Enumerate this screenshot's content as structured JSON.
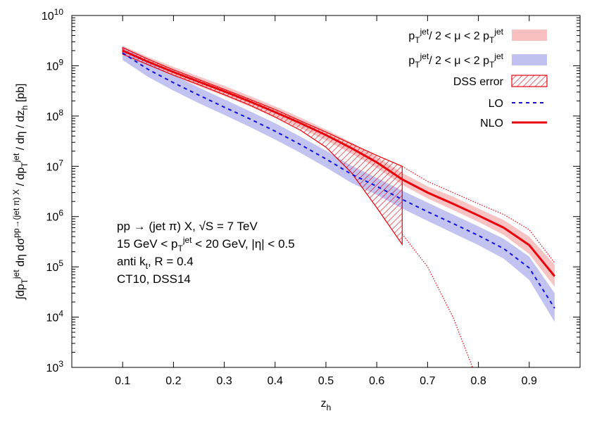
{
  "chart_data": {
    "type": "line",
    "xlabel": "z_h",
    "ylabel": "∫dp_T^jet dη dσ^{pp→(jet π) X} / dp_T^jet / dη / dz_h   [pb]",
    "xlim": [
      0.0,
      1.0
    ],
    "ylim": [
      1000,
      10000000000
    ],
    "yscale": "log",
    "x_ticks": [
      "0.1",
      "0.2",
      "0.3",
      "0.4",
      "0.5",
      "0.6",
      "0.7",
      "0.8",
      "0.9"
    ],
    "y_ticks": [
      "10^3",
      "10^4",
      "10^5",
      "10^6",
      "10^7",
      "10^8",
      "10^9",
      "10^10"
    ],
    "grid": false,
    "legend_position": "top-right",
    "legend": [
      {
        "label": "p_T^jet/ 2 < μ < 2 p_T^jet",
        "style": "band",
        "color": "#f7b9b9"
      },
      {
        "label": "p_T^jet/ 2 < μ < 2 p_T^jet",
        "style": "band",
        "color": "#b9b9f0"
      },
      {
        "label": "DSS error",
        "style": "hatch",
        "color": "#e8000b"
      },
      {
        "label": "LO",
        "style": "dashed",
        "color": "#1010e0"
      },
      {
        "label": "NLO",
        "style": "solid",
        "color": "#e8000b"
      }
    ],
    "annotations": [
      "pp → (jet π) X, √S = 7 TeV",
      "15 GeV < p_T^jet < 20 GeV, |η| < 0.5",
      "anti k_t, R = 0.4",
      "CT10, DSS14"
    ],
    "series": [
      {
        "name": "NLO",
        "x": [
          0.1,
          0.15,
          0.2,
          0.25,
          0.3,
          0.35,
          0.4,
          0.45,
          0.5,
          0.55,
          0.6,
          0.65,
          0.7,
          0.75,
          0.8,
          0.85,
          0.9,
          0.95
        ],
        "values": [
          2000000000,
          1200000000,
          750000000,
          480000000,
          310000000,
          195000000,
          120000000,
          72000000,
          42000000,
          23000000,
          12000000,
          5500000,
          3000000,
          1800000,
          1050000,
          600000,
          270000,
          65000
        ]
      },
      {
        "name": "LO",
        "x": [
          0.1,
          0.15,
          0.2,
          0.25,
          0.3,
          0.35,
          0.4,
          0.45,
          0.5,
          0.55,
          0.6,
          0.65,
          0.7,
          0.75,
          0.8,
          0.85,
          0.9,
          0.95
        ],
        "values": [
          1800000000,
          850000000,
          460000000,
          260000000,
          150000000,
          88000000,
          50000000,
          27000000,
          14000000,
          7000000,
          4000000,
          2200000,
          1250000,
          730000,
          420000,
          230000,
          95000,
          15000
        ]
      },
      {
        "name": "NLO scale band",
        "x": [
          0.1,
          0.15,
          0.2,
          0.25,
          0.3,
          0.35,
          0.4,
          0.45,
          0.5,
          0.55,
          0.6,
          0.65,
          0.7,
          0.75,
          0.8,
          0.85,
          0.9,
          0.95
        ],
        "upper": [
          2500000000,
          1500000000,
          950000000,
          610000000,
          400000000,
          250000000,
          155000000,
          93000000,
          54000000,
          30000000,
          15500000,
          7400000,
          4000000,
          2500000,
          1450000,
          850000,
          400000,
          110000
        ],
        "lower": [
          1700000000,
          1000000000,
          620000000,
          390000000,
          250000000,
          155000000,
          95000000,
          57000000,
          33000000,
          18000000,
          9300000,
          4300000,
          2300000,
          1350000,
          780000,
          430000,
          180000,
          40000
        ]
      },
      {
        "name": "LO scale band",
        "x": [
          0.1,
          0.15,
          0.2,
          0.25,
          0.3,
          0.35,
          0.4,
          0.45,
          0.5,
          0.55,
          0.6,
          0.65,
          0.7,
          0.75,
          0.8,
          0.85,
          0.9,
          0.95
        ],
        "upper": [
          2500000000,
          1200000000,
          650000000,
          370000000,
          215000000,
          125000000,
          72000000,
          39000000,
          20500000,
          10300000,
          5900000,
          3300000,
          1900000,
          1100000,
          640000,
          360000,
          160000,
          30000
        ],
        "lower": [
          1300000000,
          600000000,
          320000000,
          180000000,
          105000000,
          61000000,
          34000000,
          18500000,
          9500000,
          4700000,
          2700000,
          1450000,
          820000,
          470000,
          270000,
          145000,
          55000,
          8000
        ]
      },
      {
        "name": "DSS error",
        "x": [
          0.1,
          0.15,
          0.2,
          0.25,
          0.3,
          0.35,
          0.4,
          0.45,
          0.5,
          0.55,
          0.6,
          0.65
        ],
        "upper": [
          2300000000,
          1350000000,
          830000000,
          530000000,
          340000000,
          215000000,
          135000000,
          80000000,
          48000000,
          28000000,
          16500000,
          10000000
        ],
        "lower": [
          1700000000,
          1050000000,
          650000000,
          420000000,
          265000000,
          165000000,
          95000000,
          52000000,
          24000000,
          7500000,
          1500000,
          280000
        ]
      },
      {
        "name": "DSS error (extension)",
        "x": [
          0.65,
          0.7,
          0.75,
          0.8,
          0.85,
          0.9,
          0.95
        ],
        "upper": [
          10000000,
          5000000,
          3000000,
          1800000,
          1100000,
          550000,
          120000
        ],
        "lower": [
          450000,
          100000,
          10000,
          500,
          null,
          null,
          null
        ]
      }
    ]
  }
}
